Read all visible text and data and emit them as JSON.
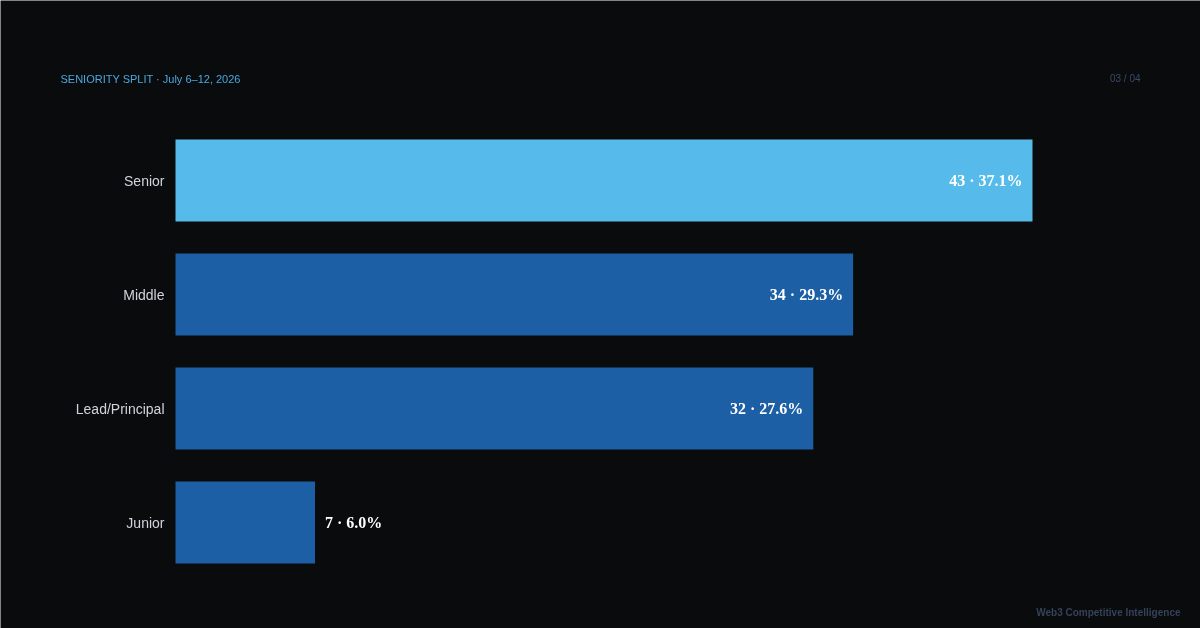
{
  "chart_data": {
    "type": "bar",
    "orientation": "horizontal",
    "title": "SENIORITY SPLIT · July 6–12, 2026",
    "categories": [
      "Senior",
      "Middle",
      "Lead/Principal",
      "Junior"
    ],
    "values": [
      43,
      34,
      32,
      7
    ],
    "colors": [
      "#56bbea",
      "#1c5fa5",
      "#1c5fa5",
      "#1c5fa5"
    ],
    "value_labels": [
      "43 · 37.1%",
      "34 · 29.3%",
      "32 · 27.6%",
      "7 · 6.0%"
    ],
    "tick_labels": "y",
    "grid": false,
    "annotations": [
      "03 / 04",
      "Web3 Competitive Intelligence"
    ]
  }
}
